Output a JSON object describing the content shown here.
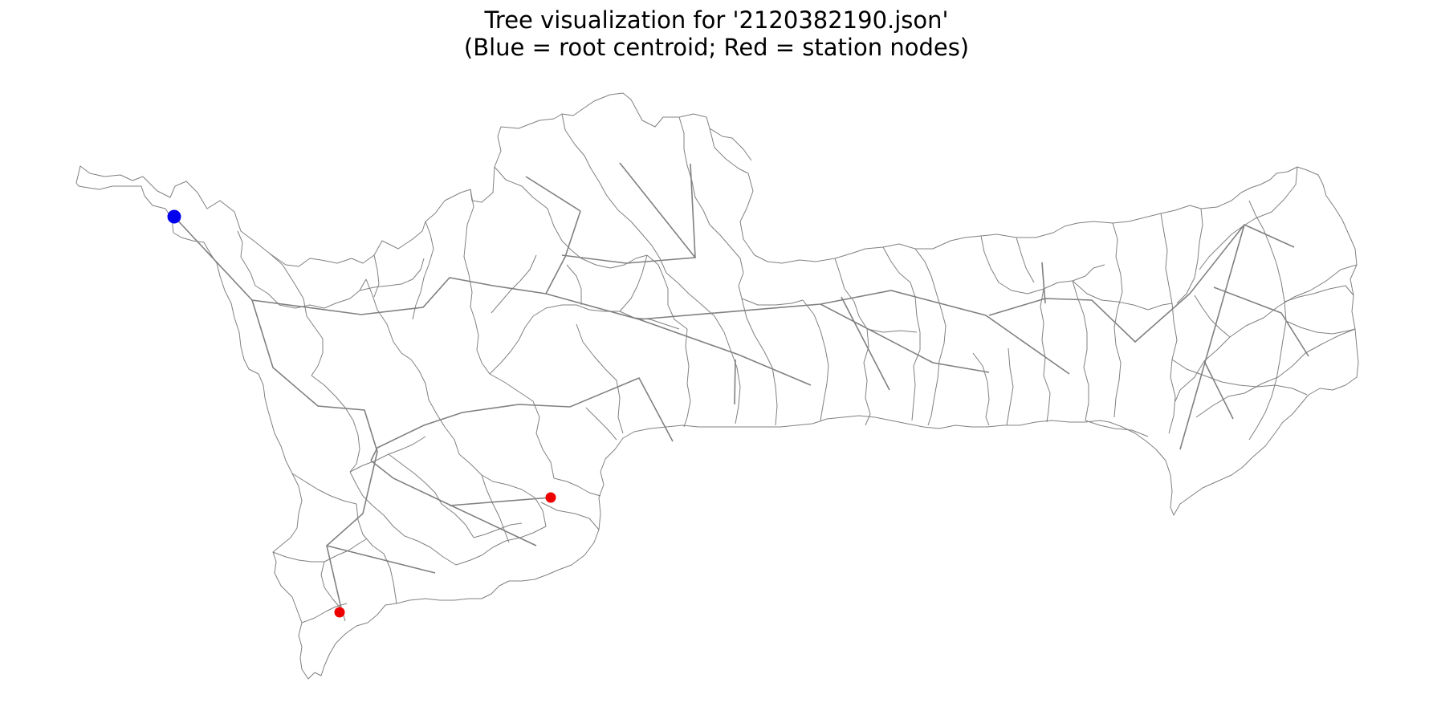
{
  "figure": {
    "title_line1": "Tree visualization for '2120382190.json'",
    "title_line2": "(Blue = root centroid; Red = station nodes)"
  },
  "colors": {
    "root": "#0000ee",
    "station": "#ee0000",
    "edge": "#808080",
    "boundary": "#808080"
  },
  "legend_semantics": {
    "root_color_meaning": "root centroid",
    "station_color_meaning": "station nodes"
  }
}
